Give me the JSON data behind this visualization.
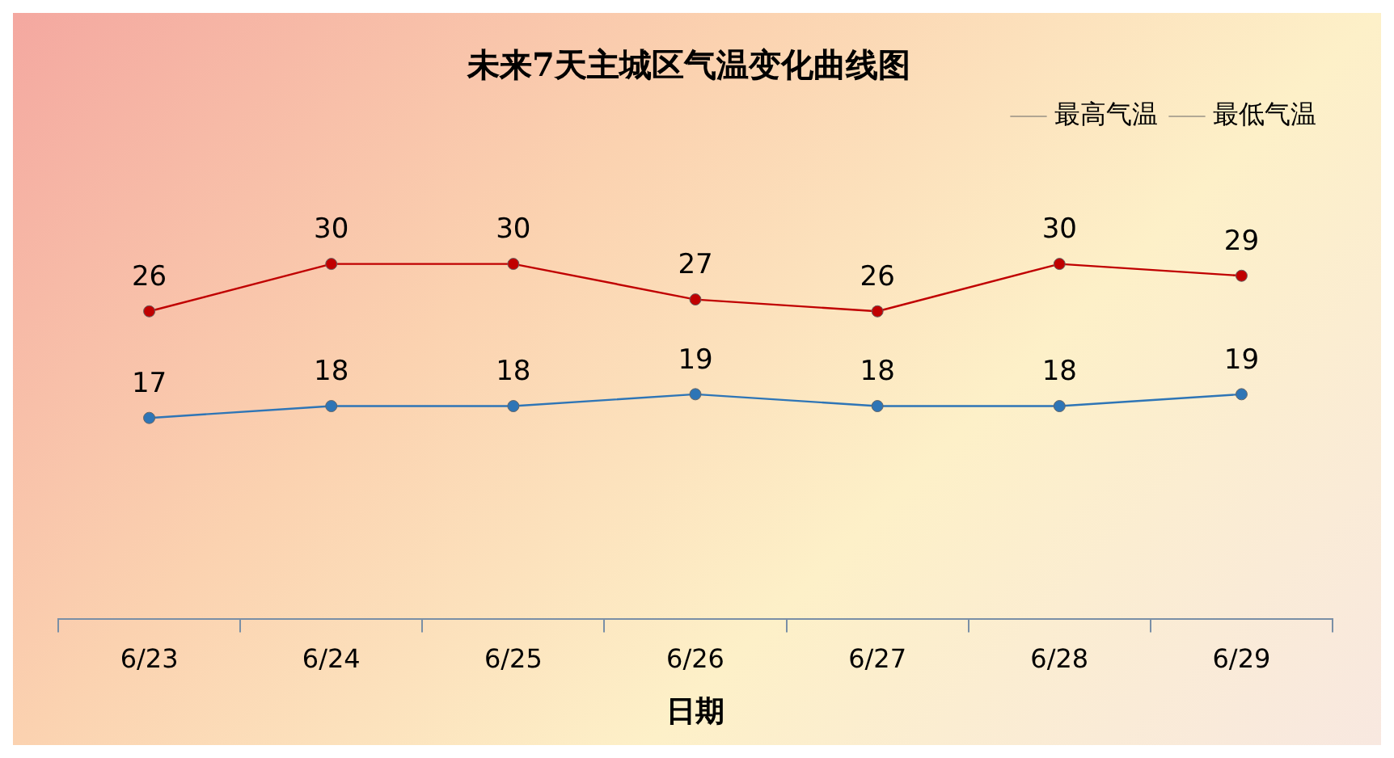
{
  "chart_data": {
    "type": "line",
    "title": "未来7天主城区气温变化曲线图",
    "xlabel": "日期",
    "categories": [
      "6/23",
      "6/24",
      "6/25",
      "6/26",
      "6/27",
      "6/28",
      "6/29"
    ],
    "series": [
      {
        "name": "最高气温",
        "color": "#c00000",
        "values": [
          26,
          30,
          30,
          27,
          26,
          30,
          29
        ]
      },
      {
        "name": "最低气温",
        "color": "#2e75b6",
        "values": [
          17,
          18,
          18,
          19,
          18,
          18,
          19
        ]
      }
    ],
    "relative": false,
    "data_labels": true,
    "legend": "top right",
    "marker": "circle",
    "line_style": "solid"
  }
}
